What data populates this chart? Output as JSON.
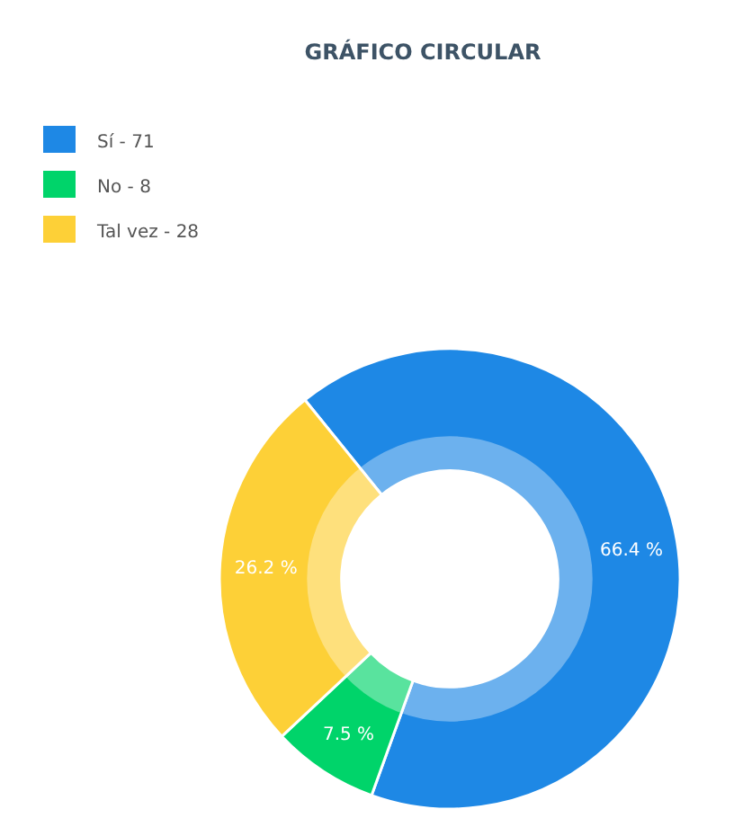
{
  "chart_data": {
    "type": "donut",
    "title": "GRÁFICO CIRCULAR",
    "categories": [
      "Sí - 71",
      "No - 8",
      "Tal vez - 28"
    ],
    "values": [
      66.4,
      7.5,
      26.2
    ],
    "colors": [
      "#1e88e5",
      "#00d46a",
      "#fdd037"
    ],
    "value_labels": [
      "66.4 %",
      "7.5 %",
      "26.2 %"
    ],
    "legend": "top left"
  }
}
